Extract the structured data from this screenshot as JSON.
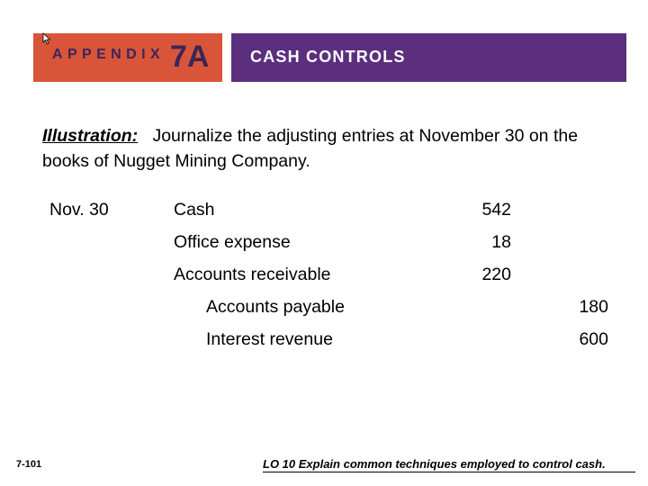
{
  "header": {
    "appendix_label": "APPENDIX",
    "appendix_number": "7A",
    "section_title": "CASH CONTROLS",
    "colors": {
      "left_panel": "#d9553a",
      "right_panel": "#5b2f7e"
    }
  },
  "illustration": {
    "label": "Illustration:",
    "text": "Journalize the adjusting entries at November 30 on the books of Nugget Mining Company."
  },
  "journal": {
    "date": "Nov. 30",
    "debits": [
      {
        "account": "Cash",
        "amount": "542"
      },
      {
        "account": "Office expense",
        "amount": "18"
      },
      {
        "account": "Accounts receivable",
        "amount": "220"
      }
    ],
    "credits": [
      {
        "account": "Accounts payable",
        "amount": "180"
      },
      {
        "account": "Interest revenue",
        "amount": "600"
      }
    ]
  },
  "footer": {
    "page_number": "7-101",
    "learning_objective": "LO 10  Explain common techniques employed to control cash."
  }
}
